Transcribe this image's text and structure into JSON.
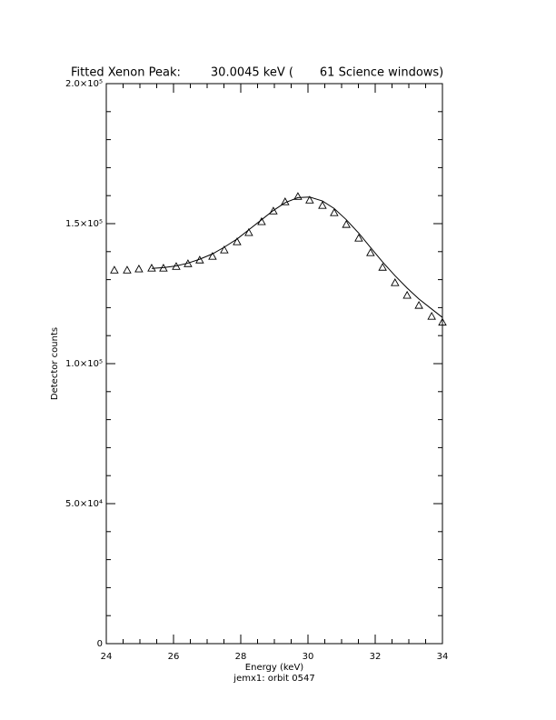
{
  "chart_data": {
    "type": "scatter",
    "title": "Fitted Xenon Peak:        30.0045 keV (       61 Science windows)",
    "x_label": "Energy (keV)",
    "caption": "jemx1: orbit 0547",
    "y_label": "Detector counts",
    "xlim": [
      24,
      34
    ],
    "xticks": [
      24,
      26,
      28,
      30,
      32,
      34
    ],
    "ylim": [
      0,
      200000
    ],
    "yticks": [
      0,
      {
        "value": 50000,
        "label": "5.0×10⁴"
      },
      {
        "value": 100000,
        "label": "1.0×10⁵"
      },
      {
        "value": 150000,
        "label": "1.5×10⁵"
      },
      {
        "value": 200000,
        "label": "2.0×10⁵"
      }
    ],
    "series": [
      {
        "color": "#000000",
        "marker": "triangle",
        "x": [
          24.24,
          24.62,
          24.97,
          25.35,
          25.7,
          26.08,
          26.43,
          26.78,
          27.16,
          27.51,
          27.89,
          28.24,
          28.62,
          28.97,
          29.32,
          29.7,
          30.05,
          30.43,
          30.78,
          31.14,
          31.51,
          31.86,
          32.22,
          32.59,
          32.95,
          33.3,
          33.68,
          34.0
        ],
        "values": [
          133400,
          133400,
          133800,
          134100,
          134100,
          134700,
          135700,
          137000,
          138300,
          140600,
          143500,
          146800,
          150700,
          154500,
          157800,
          159700,
          158400,
          156500,
          153900,
          149700,
          144800,
          139600,
          134400,
          128900,
          124400,
          120800,
          116900,
          114800
        ]
      },
      {
        "color": "#000000",
        "marker": "line",
        "x": [
          25.35,
          25.7,
          26.08,
          26.43,
          26.78,
          27.16,
          27.51,
          27.89,
          28.24,
          28.62,
          28.97,
          29.32,
          29.7,
          30.05,
          30.43,
          30.78,
          31.14,
          31.51,
          31.86,
          32.22,
          32.59,
          32.95,
          33.3,
          33.68,
          34.0
        ],
        "values": [
          134000,
          134300,
          134900,
          135900,
          137300,
          139200,
          141600,
          144500,
          147800,
          151400,
          154700,
          157500,
          159300,
          159500,
          158100,
          155400,
          151400,
          146600,
          141500,
          136300,
          131400,
          127000,
          123100,
          119500,
          116500
        ]
      }
    ]
  }
}
